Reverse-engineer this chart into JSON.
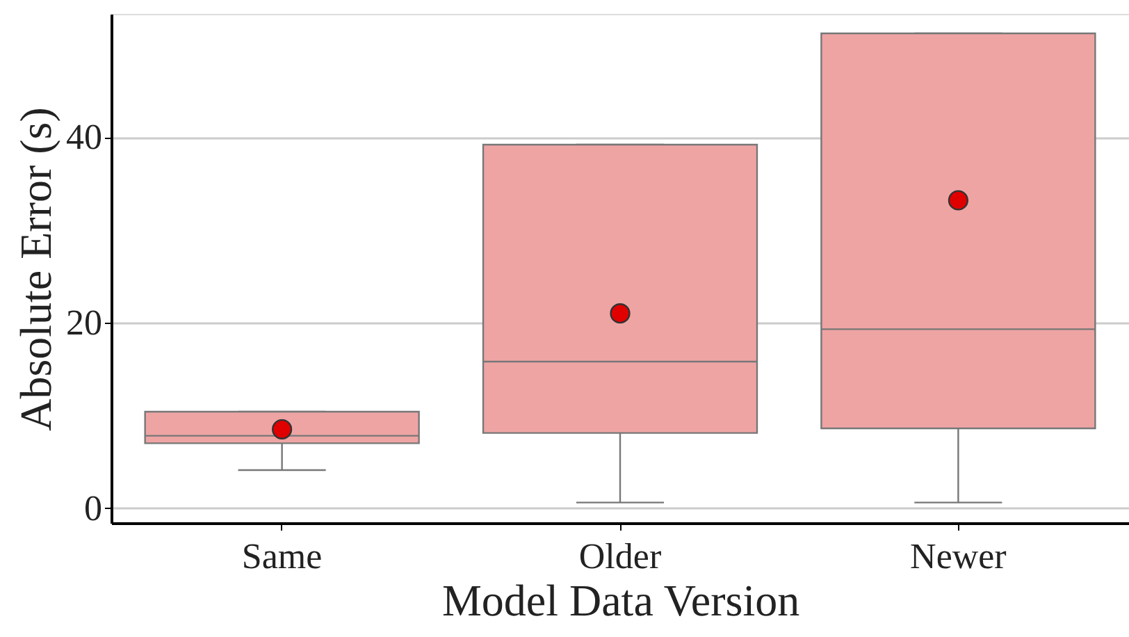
{
  "chart_data": {
    "type": "box",
    "xlabel": "Model Data Version",
    "ylabel": "Absolute Error (s)",
    "categories": [
      "Same",
      "Older",
      "Newer"
    ],
    "series": [
      {
        "color": "#efa4a4",
        "boxes": [
          {
            "low": 4.1,
            "q1": 7.0,
            "median": 7.8,
            "q3": 10.4,
            "high": 10.4,
            "mean": 8.5
          },
          {
            "low": 0.6,
            "q1": 8.1,
            "median": 15.8,
            "q3": 39.2,
            "high": 39.2,
            "mean": 21.0
          },
          {
            "low": 0.6,
            "q1": 8.6,
            "median": 19.3,
            "q3": 51.2,
            "high": 51.2,
            "mean": 33.2
          }
        ]
      }
    ],
    "ylim": [
      -1.6,
      53.3
    ],
    "yticks": [
      0,
      20,
      40
    ],
    "grid": "y",
    "marker": "circle"
  }
}
